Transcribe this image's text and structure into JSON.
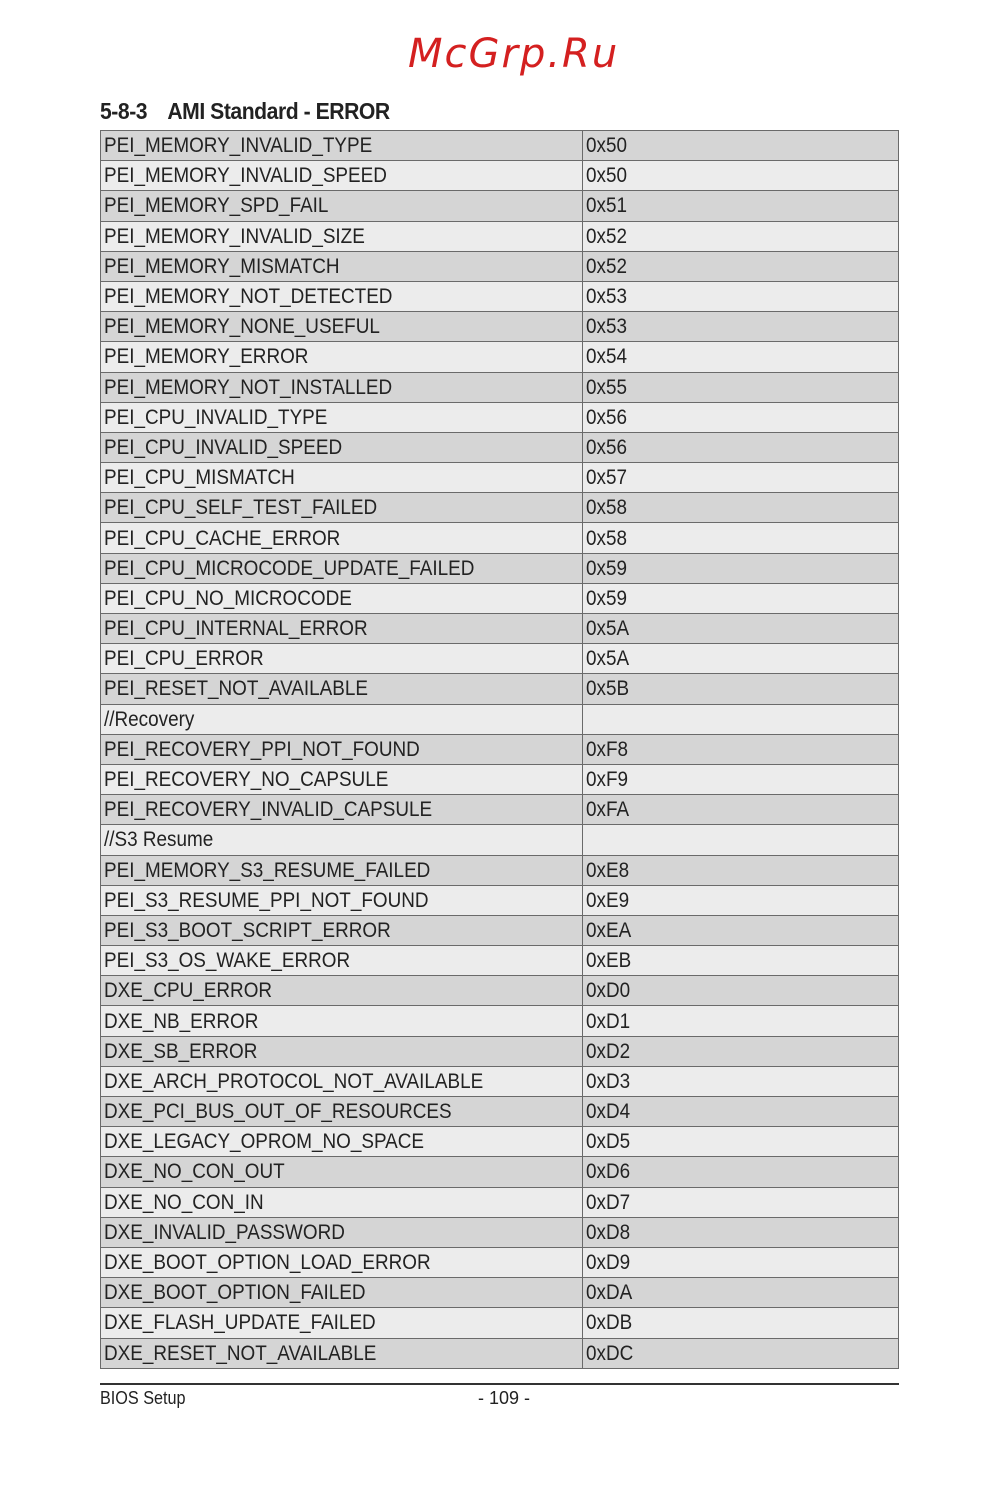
{
  "section": {
    "number": "5-8-3",
    "title": "AMI Standard - ERROR"
  },
  "rows": [
    [
      "PEI_MEMORY_INVALID_TYPE",
      "0x50"
    ],
    [
      "PEI_MEMORY_INVALID_SPEED",
      "0x50"
    ],
    [
      "PEI_MEMORY_SPD_FAIL",
      "0x51"
    ],
    [
      "PEI_MEMORY_INVALID_SIZE",
      "0x52"
    ],
    [
      "PEI_MEMORY_MISMATCH",
      "0x52"
    ],
    [
      "PEI_MEMORY_NOT_DETECTED",
      "0x53"
    ],
    [
      "PEI_MEMORY_NONE_USEFUL",
      "0x53"
    ],
    [
      "PEI_MEMORY_ERROR",
      "0x54"
    ],
    [
      "PEI_MEMORY_NOT_INSTALLED",
      "0x55"
    ],
    [
      "PEI_CPU_INVALID_TYPE",
      "0x56"
    ],
    [
      "PEI_CPU_INVALID_SPEED",
      "0x56"
    ],
    [
      "PEI_CPU_MISMATCH",
      "0x57"
    ],
    [
      "PEI_CPU_SELF_TEST_FAILED",
      "0x58"
    ],
    [
      "PEI_CPU_CACHE_ERROR",
      "0x58"
    ],
    [
      "PEI_CPU_MICROCODE_UPDATE_FAILED",
      "0x59"
    ],
    [
      "PEI_CPU_NO_MICROCODE",
      "0x59"
    ],
    [
      "PEI_CPU_INTERNAL_ERROR",
      "0x5A"
    ],
    [
      "PEI_CPU_ERROR",
      "0x5A"
    ],
    [
      "PEI_RESET_NOT_AVAILABLE",
      "0x5B"
    ],
    [
      "//Recovery",
      ""
    ],
    [
      "PEI_RECOVERY_PPI_NOT_FOUND",
      "0xF8"
    ],
    [
      "PEI_RECOVERY_NO_CAPSULE",
      "0xF9"
    ],
    [
      "PEI_RECOVERY_INVALID_CAPSULE",
      "0xFA"
    ],
    [
      "//S3 Resume",
      ""
    ],
    [
      "PEI_MEMORY_S3_RESUME_FAILED",
      "0xE8"
    ],
    [
      "PEI_S3_RESUME_PPI_NOT_FOUND",
      "0xE9"
    ],
    [
      "PEI_S3_BOOT_SCRIPT_ERROR",
      "0xEA"
    ],
    [
      "PEI_S3_OS_WAKE_ERROR",
      "0xEB"
    ],
    [
      "DXE_CPU_ERROR",
      "0xD0"
    ],
    [
      "DXE_NB_ERROR",
      "0xD1"
    ],
    [
      "DXE_SB_ERROR",
      "0xD2"
    ],
    [
      "DXE_ARCH_PROTOCOL_NOT_AVAILABLE",
      "0xD3"
    ],
    [
      "DXE_PCI_BUS_OUT_OF_RESOURCES",
      "0xD4"
    ],
    [
      "DXE_LEGACY_OPROM_NO_SPACE",
      "0xD5"
    ],
    [
      "DXE_NO_CON_OUT",
      "0xD6"
    ],
    [
      "DXE_NO_CON_IN",
      "0xD7"
    ],
    [
      "DXE_INVALID_PASSWORD",
      "0xD8"
    ],
    [
      "DXE_BOOT_OPTION_LOAD_ERROR",
      "0xD9"
    ],
    [
      "DXE_BOOT_OPTION_FAILED",
      "0xDA"
    ],
    [
      "DXE_FLASH_UPDATE_FAILED",
      "0xDB"
    ],
    [
      "DXE_RESET_NOT_AVAILABLE",
      "0xDC"
    ]
  ],
  "footer": {
    "left": "BIOS Setup",
    "page": "- 109 -"
  },
  "watermark": "McGrp.Ru",
  "colors": {
    "row_dark": "#d5d5d5",
    "row_light": "#ececec",
    "watermark": "#d42020"
  }
}
